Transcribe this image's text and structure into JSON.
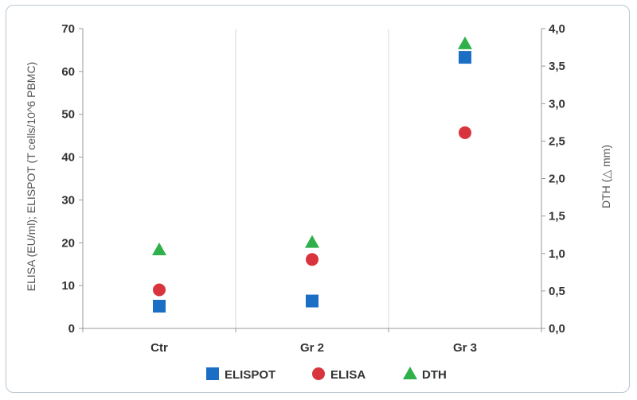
{
  "chart_data": {
    "type": "scatter",
    "categories": [
      "Ctr",
      "Gr 2",
      "Gr 3"
    ],
    "ylabel": "ELISA (EU/ml); ELISPOT (T cells/10^6 PBMC)",
    "y2label": "DTH (△ mm)",
    "ylim": [
      0,
      70
    ],
    "y2lim": [
      0,
      4
    ],
    "yticks": [
      "0",
      "10",
      "20",
      "30",
      "40",
      "50",
      "60",
      "70"
    ],
    "y2ticks": [
      "0,0",
      "0,5",
      "1,0",
      "1,5",
      "2,0",
      "2,5",
      "3,0",
      "3,5",
      "4,0"
    ],
    "grid": "vertical",
    "legend_position": "bottom",
    "series": [
      {
        "name": "ELISPOT",
        "axis": "left",
        "marker": "square",
        "color": "#1a6fc4",
        "values": [
          5.2,
          6.4,
          63.3
        ]
      },
      {
        "name": "ELISA",
        "axis": "left",
        "marker": "circle",
        "color": "#d9343e",
        "values": [
          9,
          16.1,
          45.7
        ]
      },
      {
        "name": "DTH",
        "axis": "right",
        "marker": "triangle",
        "color": "#2fb04a",
        "values": [
          1.05,
          1.15,
          3.8
        ]
      }
    ]
  }
}
